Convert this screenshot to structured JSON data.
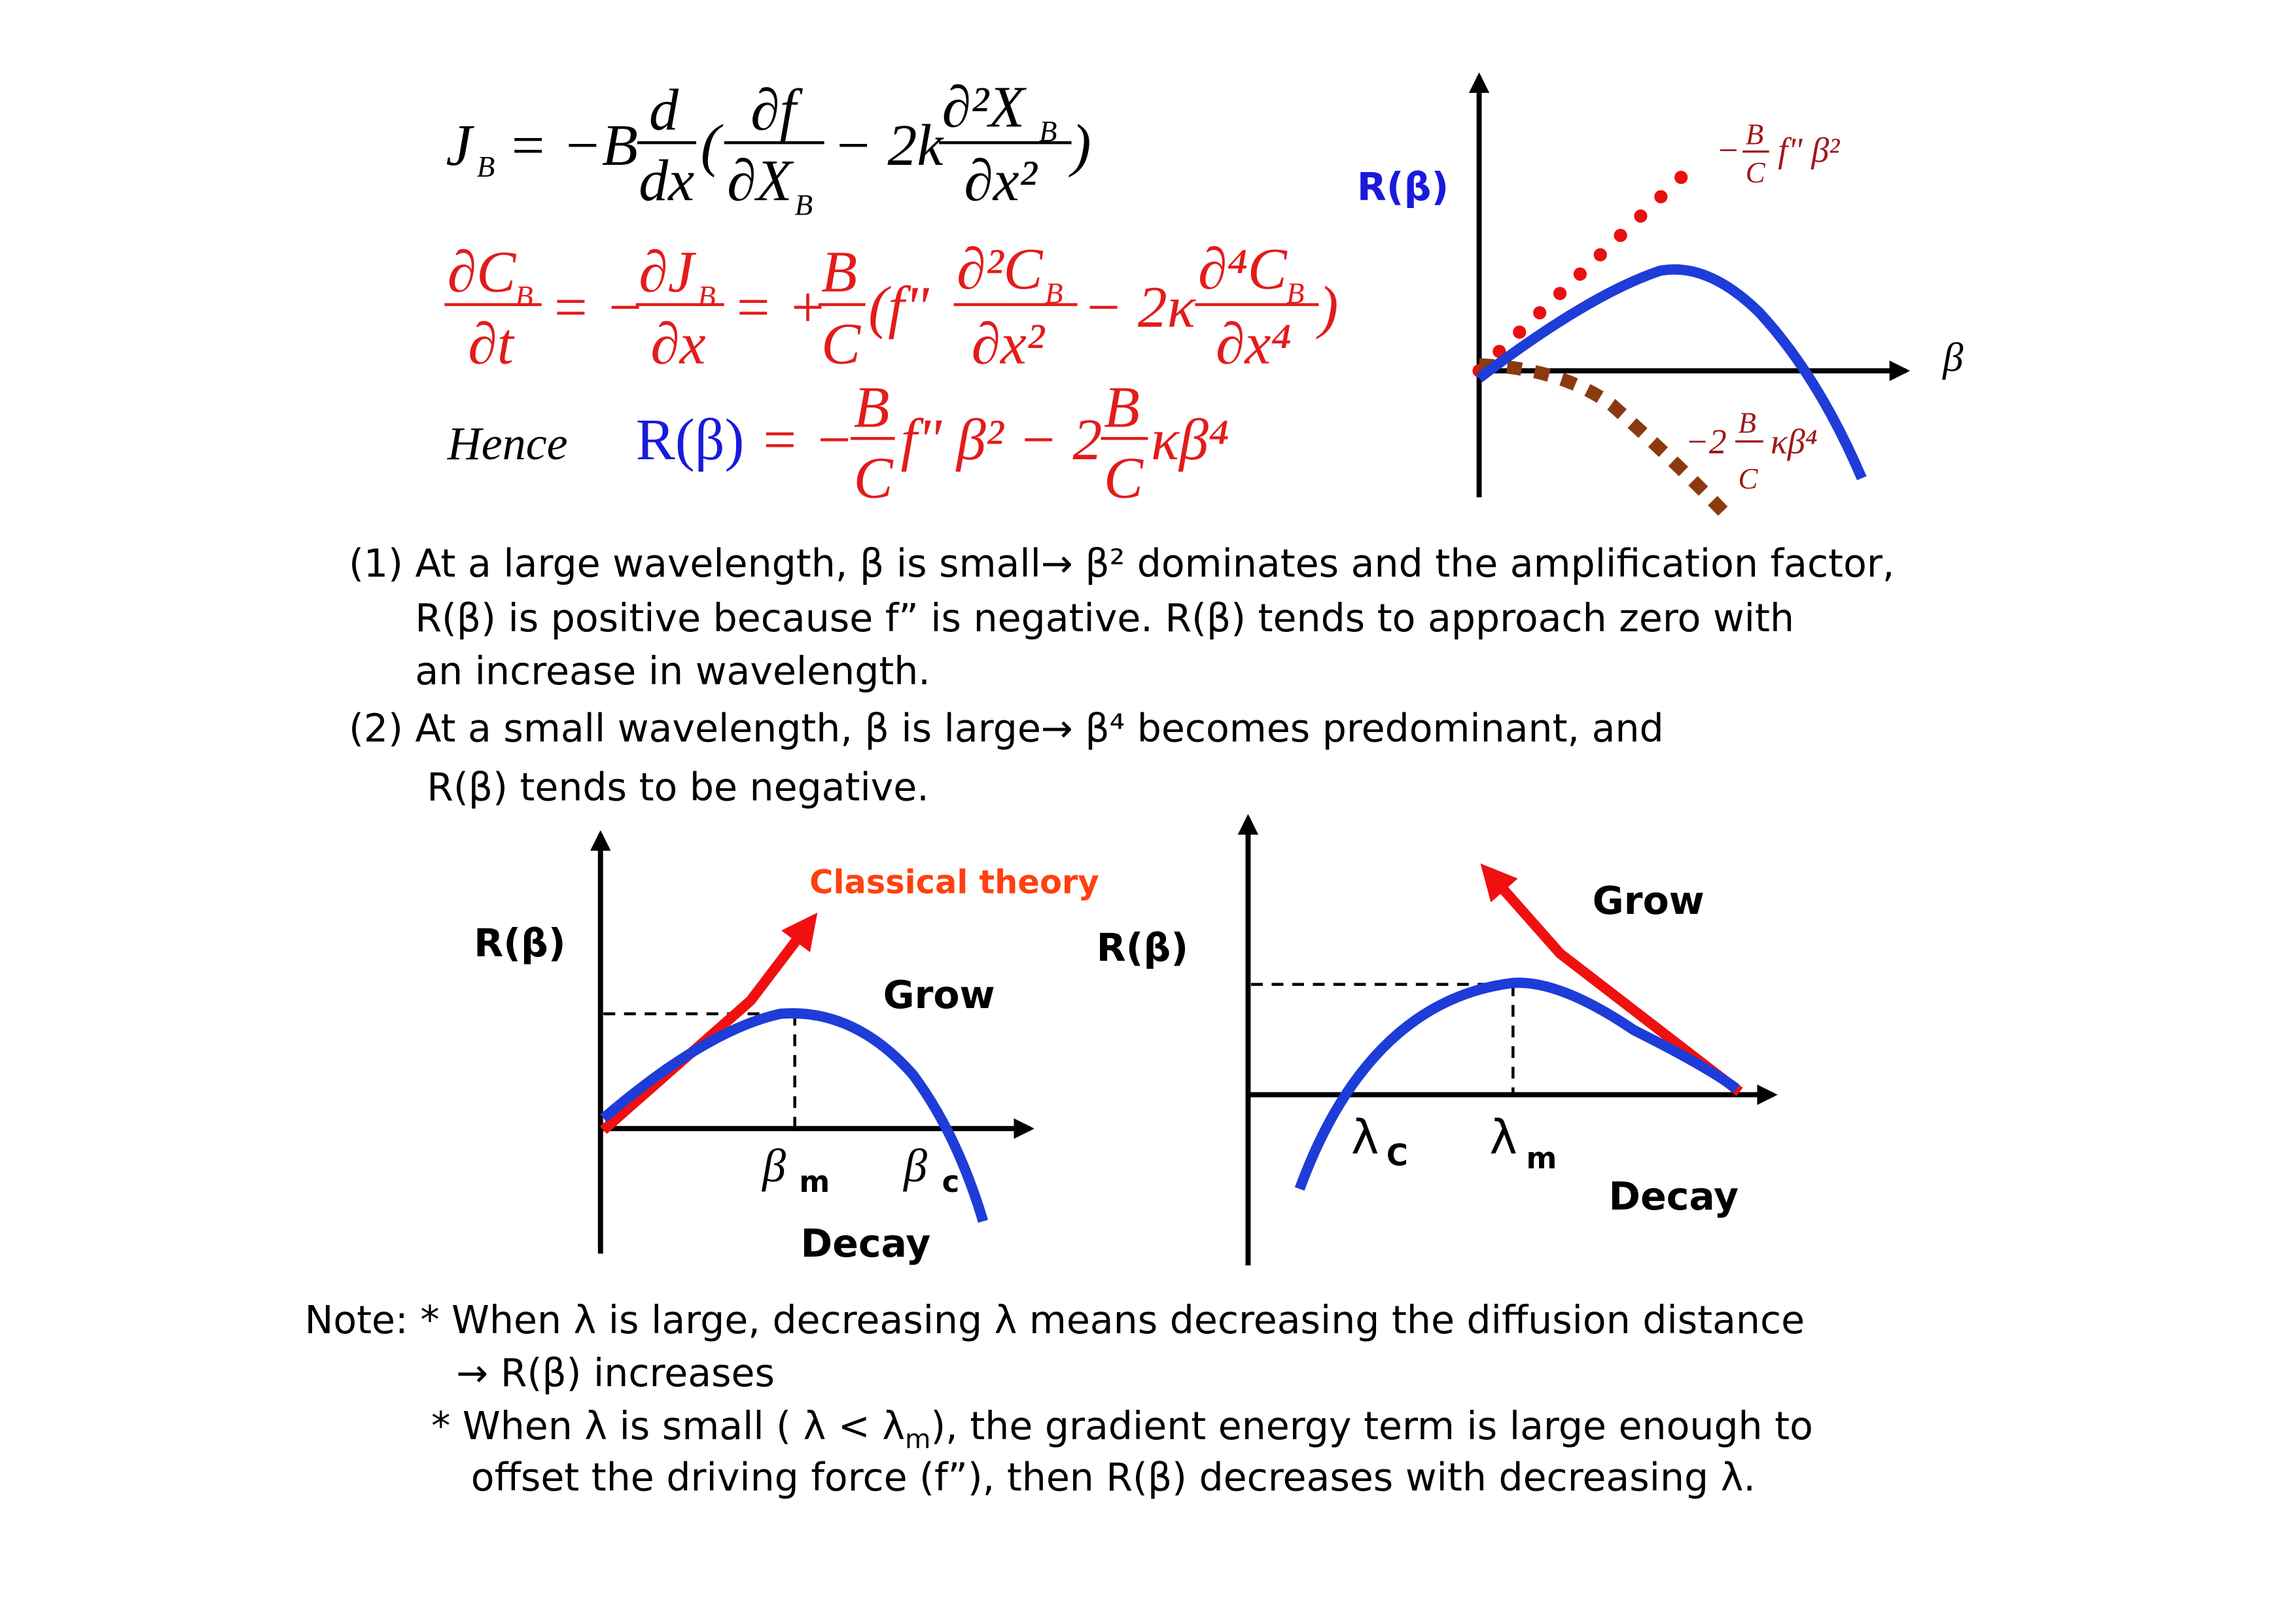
{
  "equations": {
    "flux": {
      "lhs": "J",
      "lhs_sub": "B",
      "eq": "= −B",
      "d_num": "d",
      "d_den": "dx",
      "open": "(",
      "t1_num": "∂f",
      "t1_den": "∂X",
      "t1_den_sub": "B",
      "minus": "− 2k",
      "t2_num": "∂²X",
      "t2_num_sub": "B",
      "t2_den": "∂x²",
      "close": ")"
    },
    "diffusion": {
      "lhs_num": "∂C",
      "lhs_num_sub": "B",
      "lhs_den": "∂t",
      "eq1": "= −",
      "j_num": "∂J",
      "j_num_sub": "B",
      "j_den": "∂x",
      "eq2": "= +",
      "bc_num": "B",
      "bc_den": "C",
      "open": "(f\"",
      "t1_num": "∂²C",
      "t1_num_sub": "B",
      "t1_den": "∂x²",
      "minus": "− 2κ",
      "t2_num": "∂⁴C",
      "t2_num_sub": "B",
      "t2_den": "∂x⁴",
      "close": ")"
    },
    "result": {
      "hence": "Hence",
      "lhs": "R(β)",
      "eq": "= −",
      "bc1_num": "B",
      "bc1_den": "C",
      "mid": "f\" β² − 2",
      "bc2_num": "B",
      "bc2_den": "C",
      "tail": "κβ⁴"
    }
  },
  "top_graph": {
    "y_label": "R(β)",
    "x_label": "β",
    "term1": {
      "sign": "−",
      "num": "B",
      "den": "C",
      "rest": "f\" β²"
    },
    "term2": {
      "sign": "−2",
      "num": "B",
      "den": "C",
      "rest": "κβ⁴"
    }
  },
  "explanation": [
    "(1) At a large wavelength, β is small→ β² dominates and the amplification factor,",
    "R(β) is positive because f” is negative. R(β) tends to approach zero with",
    "an increase in wavelength.",
    "(2) At a small wavelength, β is large→ β⁴ becomes predominant, and",
    "R(β) tends to be negative."
  ],
  "left_graph": {
    "y_label": "R(β)",
    "classical": "Classical theory",
    "grow": "Grow",
    "decay": "Decay",
    "beta_m": "β",
    "beta_m_sub": "m",
    "beta_c": "β",
    "beta_c_sub": "c"
  },
  "right_graph": {
    "y_label": "R(β)",
    "grow": "Grow",
    "decay": "Decay",
    "lambda_c": "λ",
    "lambda_c_sub": "C",
    "lambda_m": "λ",
    "lambda_m_sub": "m"
  },
  "note": {
    "line1": "Note: * When λ is large, decreasing λ means decreasing the diffusion distance",
    "line2": "→ R(β) increases",
    "line3_a": "* When λ is small ( λ < λ",
    "line3_sub": "m",
    "line3_b": "), the gradient energy term is large enough to",
    "line4": "offset the driving force (f”), then R(β) decreases with decreasing λ."
  }
}
